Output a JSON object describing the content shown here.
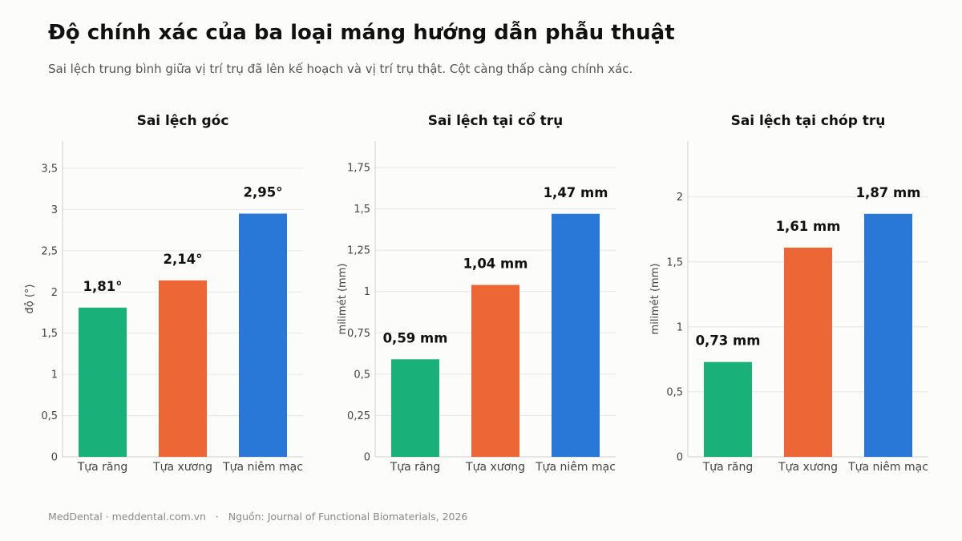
{
  "header": {
    "title": "Độ chính xác của ba loại máng hướng dẫn phẫu thuật",
    "subtitle": "Sai lệch trung bình giữa vị trí trụ đã lên kế hoạch và vị trí trụ thật. Cột càng thấp càng chính xác."
  },
  "footer": {
    "brand": "MedDental · meddental.com.vn",
    "separator": "·",
    "source": "Nguồn: Journal of Functional Biomaterials, 2026"
  },
  "colors": {
    "teeth": "#1ab07a",
    "bone": "#ec6735",
    "mucosa": "#2977d6",
    "grid": "#e6e6e6",
    "axis": "#cfcfcf"
  },
  "chart_data": [
    {
      "type": "bar",
      "title": "Sai lệch góc",
      "ylabel": "độ (°)",
      "categories": [
        "Tựa răng",
        "Tựa xương",
        "Tựa niêm mạc"
      ],
      "values": [
        1.81,
        2.14,
        2.95
      ],
      "value_labels": [
        "1,81°",
        "2,14°",
        "2,95°"
      ],
      "ylim": [
        0,
        3.83
      ],
      "yticks": [
        0,
        0.5,
        1,
        1.5,
        2,
        2.5,
        3,
        3.5
      ],
      "ytick_labels": [
        "0",
        "0,5",
        "1",
        "1,5",
        "2",
        "2,5",
        "3",
        "3,5"
      ],
      "grid": true
    },
    {
      "type": "bar",
      "title": "Sai lệch tại cổ trụ",
      "ylabel": "milimét (mm)",
      "categories": [
        "Tựa răng",
        "Tựa xương",
        "Tựa niêm mạc"
      ],
      "values": [
        0.59,
        1.04,
        1.47
      ],
      "value_labels": [
        "0,59 mm",
        "1,04 mm",
        "1,47 mm"
      ],
      "ylim": [
        0,
        1.91
      ],
      "yticks": [
        0,
        0.25,
        0.5,
        0.75,
        1,
        1.25,
        1.5,
        1.75
      ],
      "ytick_labels": [
        "0",
        "0,25",
        "0,5",
        "0,75",
        "1",
        "1,25",
        "1,5",
        "1,75"
      ],
      "grid": true
    },
    {
      "type": "bar",
      "title": "Sai lệch tại chóp trụ",
      "ylabel": "milimét (mm)",
      "categories": [
        "Tựa răng",
        "Tựa xương",
        "Tựa niêm mạc"
      ],
      "values": [
        0.73,
        1.61,
        1.87
      ],
      "value_labels": [
        "0,73 mm",
        "1,61 mm",
        "1,87 mm"
      ],
      "ylim": [
        0,
        2.43
      ],
      "yticks": [
        0,
        0.5,
        1,
        1.5,
        2
      ],
      "ytick_labels": [
        "0",
        "0,5",
        "1",
        "1,5",
        "2"
      ],
      "grid": true
    }
  ]
}
